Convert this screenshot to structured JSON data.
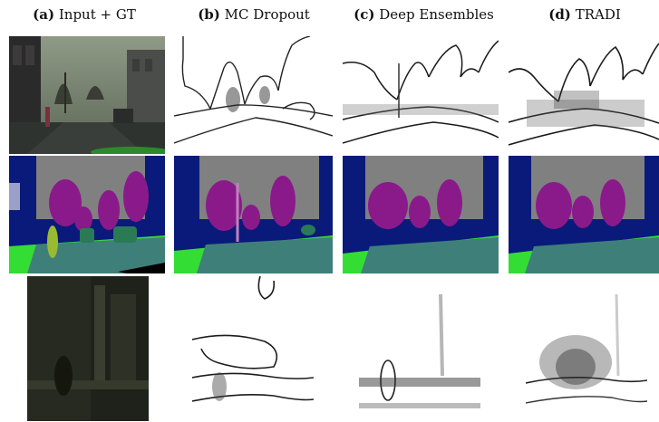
{
  "figure": {
    "columns": [
      {
        "letter": "(a)",
        "title": "Input + GT"
      },
      {
        "letter": "(b)",
        "title": "MC Dropout"
      },
      {
        "letter": "(c)",
        "title": "Deep Ensembles"
      },
      {
        "letter": "(d)",
        "title": "TRADI"
      }
    ],
    "colors": {
      "sky": "#808080",
      "building": "#0a1a7a",
      "vegetation": "#8a1a8a",
      "road": "#3f7f7a",
      "sidewalk": "#33dd33",
      "pedestrian": "#99bb33",
      "car": "#2a7a55",
      "pole": "#c080c0",
      "sign": "#9aa0c8"
    }
  }
}
